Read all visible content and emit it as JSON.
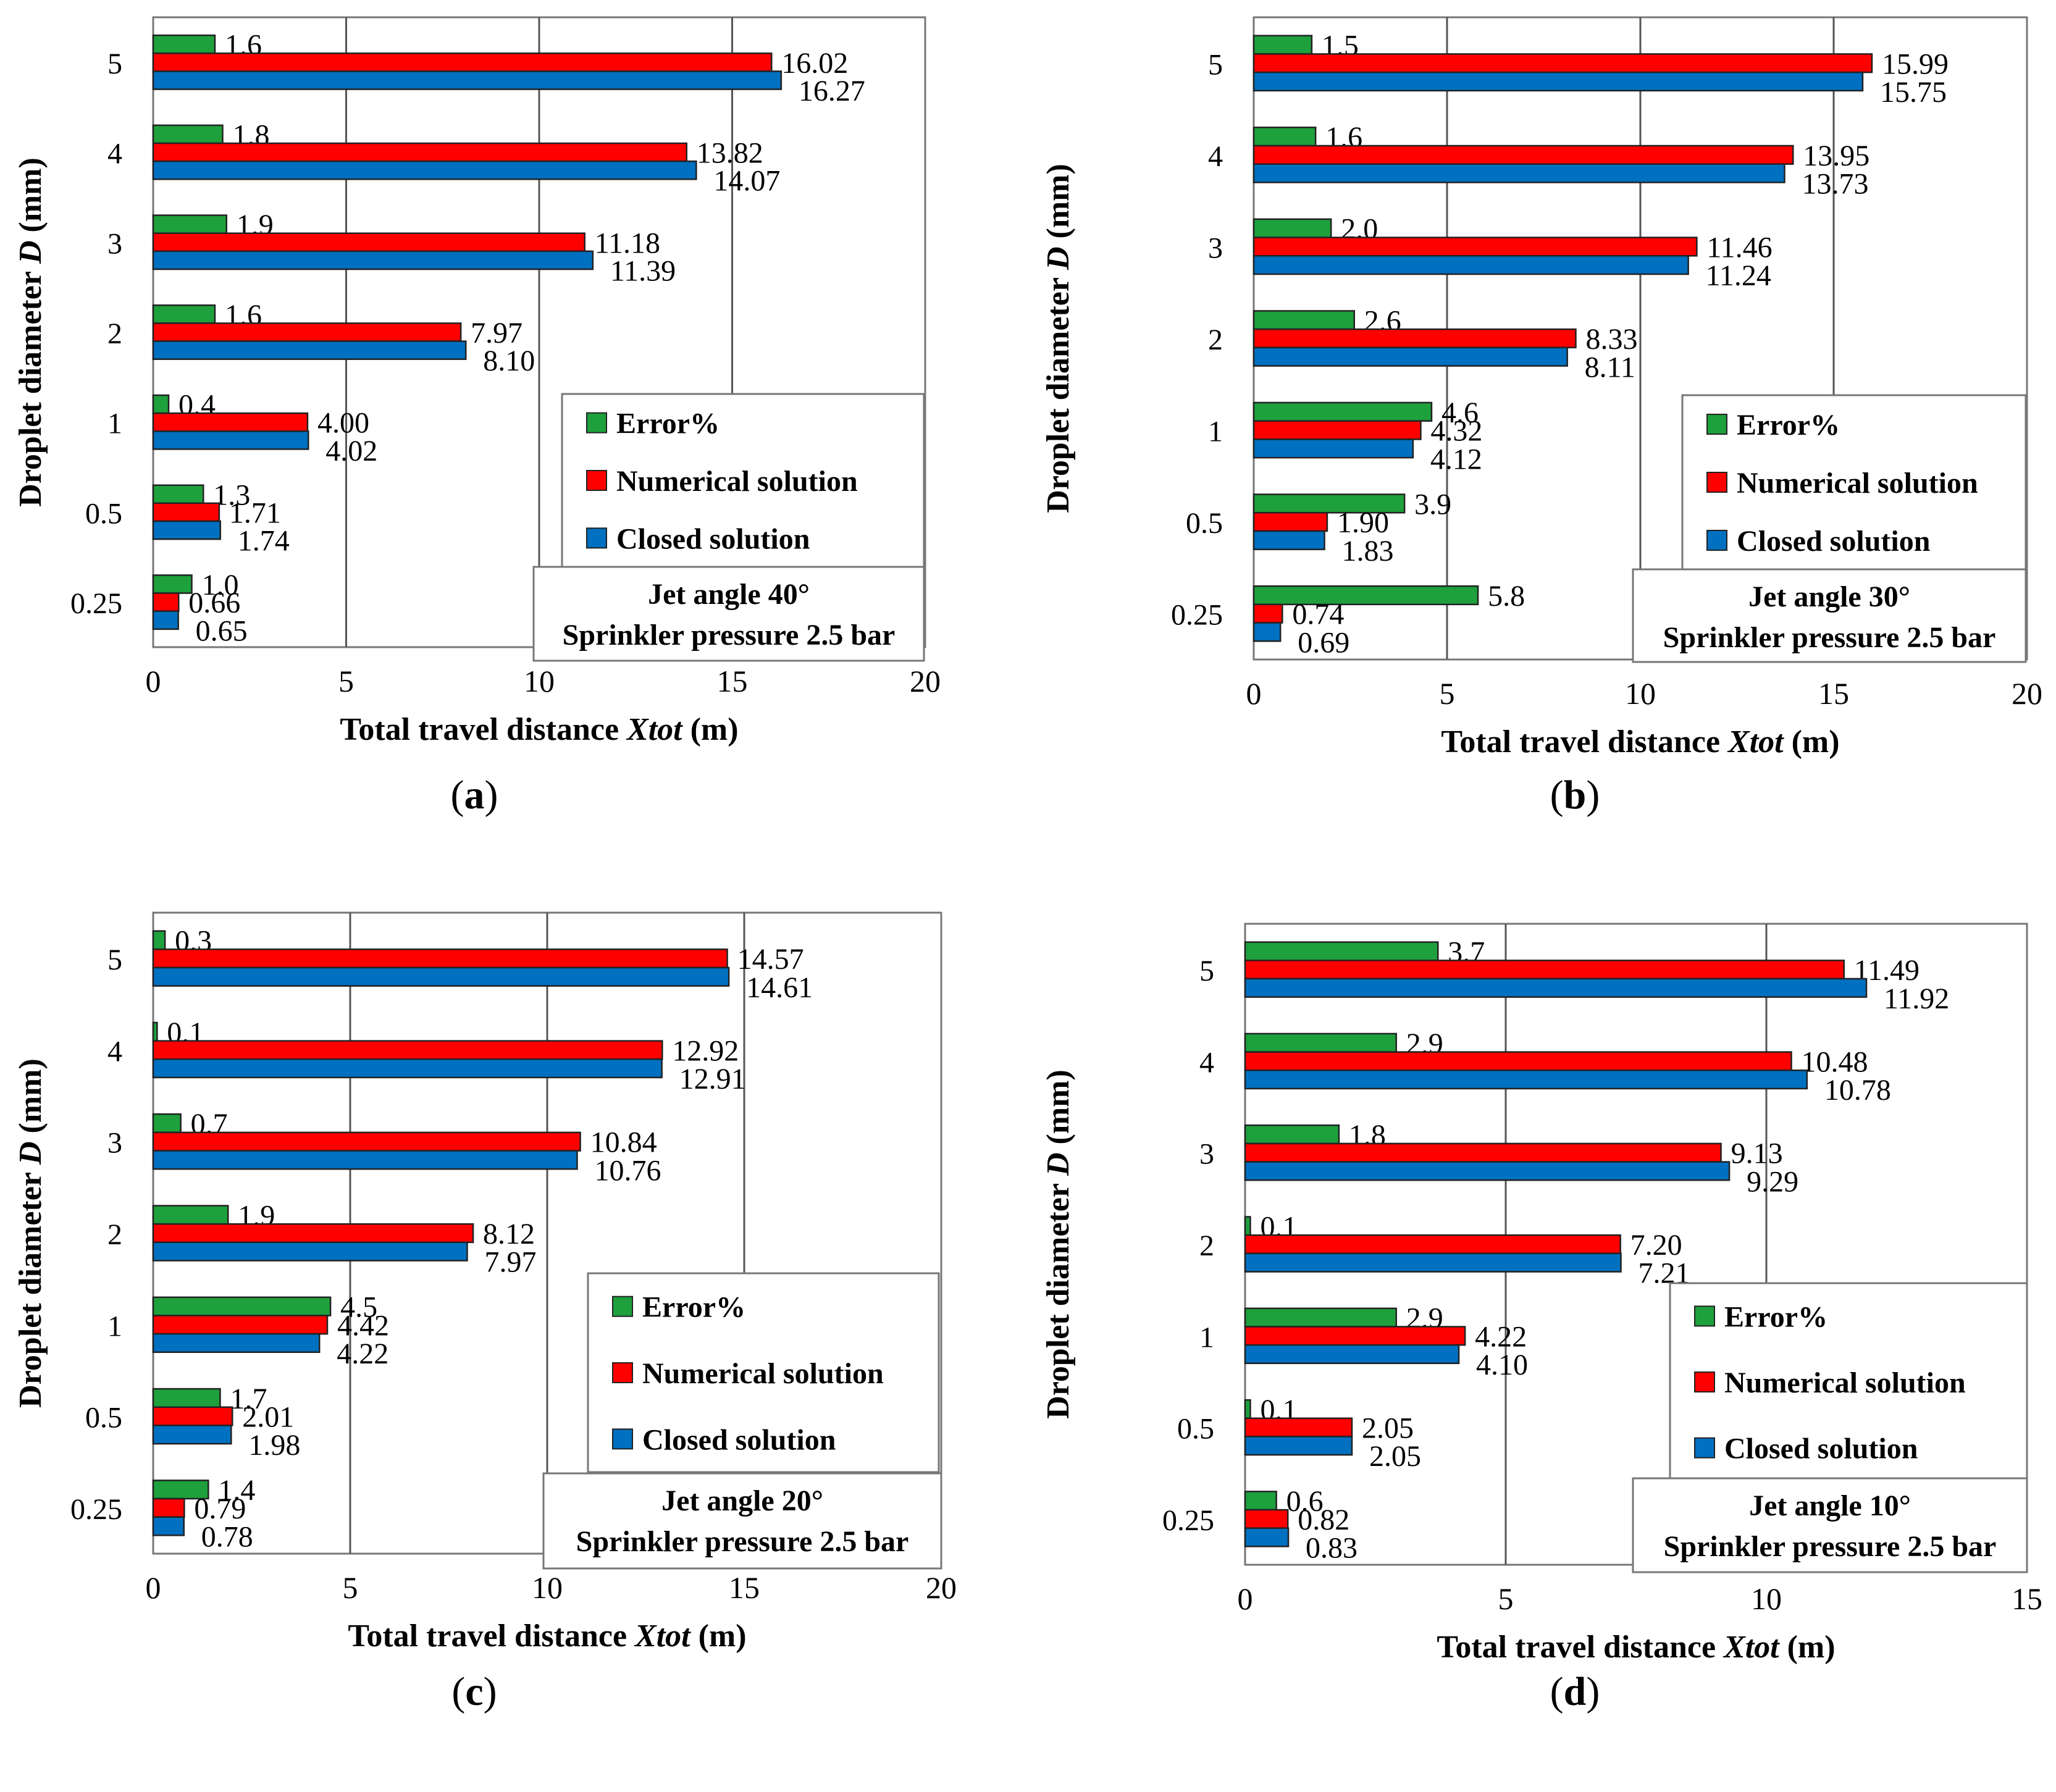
{
  "colors": {
    "error": "#1ea03c",
    "numerical": "#ff0000",
    "closed": "#0070c0"
  },
  "panels": [
    {
      "caption": "a",
      "legend": [
        "Error%",
        "Numerical solution",
        "Closed solution"
      ],
      "info": [
        "Jet angle 40°",
        "Sprinkler pressure 2.5 bar"
      ],
      "chart_data": {
        "type": "bar",
        "orientation": "horizontal",
        "categories": [
          "5",
          "4",
          "3",
          "2",
          "1",
          "0.5",
          "0.25"
        ],
        "series": [
          {
            "name": "Error%",
            "values": [
              1.6,
              1.8,
              1.9,
              1.6,
              0.4,
              1.3,
              1.0
            ],
            "labels": [
              "1.6",
              "1.8",
              "1.9",
              "1.6",
              "0.4",
              "1.3",
              "1.0"
            ]
          },
          {
            "name": "Numerical solution",
            "values": [
              16.02,
              13.82,
              11.18,
              7.97,
              4.0,
              1.71,
              0.66
            ],
            "labels": [
              "16.02",
              "13.82",
              "11.18",
              "7.97",
              "4.00",
              "1.71",
              "0.66"
            ]
          },
          {
            "name": "Closed solution",
            "values": [
              16.27,
              14.07,
              11.39,
              8.1,
              4.02,
              1.74,
              0.65
            ],
            "labels": [
              "16.27",
              "14.07",
              "11.39",
              "8.10",
              "4.02",
              "1.74",
              "0.65"
            ]
          }
        ],
        "xlim": [
          0,
          20
        ],
        "xticks": [
          "0",
          "5",
          "10",
          "15",
          "20"
        ],
        "xlabel": "Total travel distance Xtot (m)",
        "xlabel_pre": "Total travel distance ",
        "xlabel_var": "Xtot",
        "xlabel_post": " (m)",
        "ylabel": "Droplet diameter D (mm)",
        "ylabel_pre": "Droplet diameter ",
        "ylabel_var": "D",
        "ylabel_post": " (mm)"
      }
    },
    {
      "caption": "b",
      "legend": [
        "Error%",
        "Numerical solution",
        "Closed solution"
      ],
      "info": [
        "Jet angle 30°",
        "Sprinkler pressure 2.5 bar"
      ],
      "chart_data": {
        "type": "bar",
        "orientation": "horizontal",
        "categories": [
          "5",
          "4",
          "3",
          "2",
          "1",
          "0.5",
          "0.25"
        ],
        "series": [
          {
            "name": "Error%",
            "values": [
              1.5,
              1.6,
              2.0,
              2.6,
              4.6,
              3.9,
              5.8
            ],
            "labels": [
              "1.5",
              "1.6",
              "2.0",
              "2.6",
              "4.6",
              "3.9",
              "5.8"
            ]
          },
          {
            "name": "Numerical solution",
            "values": [
              15.99,
              13.95,
              11.46,
              8.33,
              4.32,
              1.9,
              0.74
            ],
            "labels": [
              "15.99",
              "13.95",
              "11.46",
              "8.33",
              "4.32",
              "1.90",
              "0.74"
            ]
          },
          {
            "name": "Closed solution",
            "values": [
              15.75,
              13.73,
              11.24,
              8.11,
              4.12,
              1.83,
              0.69
            ],
            "labels": [
              "15.75",
              "13.73",
              "11.24",
              "8.11",
              "4.12",
              "1.83",
              "0.69"
            ]
          }
        ],
        "xlim": [
          0,
          20
        ],
        "xticks": [
          "0",
          "5",
          "10",
          "15",
          "20"
        ],
        "xlabel": "Total travel distance Xtot (m)",
        "xlabel_pre": "Total travel distance ",
        "xlabel_var": "Xtot",
        "xlabel_post": " (m)",
        "ylabel": "Droplet diameter D (mm)",
        "ylabel_pre": "Droplet diameter ",
        "ylabel_var": "D",
        "ylabel_post": " (mm)"
      }
    },
    {
      "caption": "c",
      "legend": [
        "Error%",
        "Numerical solution",
        "Closed solution"
      ],
      "info": [
        "Jet angle 20°",
        "Sprinkler pressure 2.5 bar"
      ],
      "chart_data": {
        "type": "bar",
        "orientation": "horizontal",
        "categories": [
          "5",
          "4",
          "3",
          "2",
          "1",
          "0.5",
          "0.25"
        ],
        "series": [
          {
            "name": "Error%",
            "values": [
              0.3,
              0.1,
              0.7,
              1.9,
              4.5,
              1.7,
              1.4
            ],
            "labels": [
              "0.3",
              "0.1",
              "0.7",
              "1.9",
              "4.5",
              "1.7",
              "1.4"
            ]
          },
          {
            "name": "Numerical solution",
            "values": [
              14.57,
              12.92,
              10.84,
              8.12,
              4.42,
              2.01,
              0.79
            ],
            "labels": [
              "14.57",
              "12.92",
              "10.84",
              "8.12",
              "4.42",
              "2.01",
              "0.79"
            ]
          },
          {
            "name": "Closed solution",
            "values": [
              14.61,
              12.91,
              10.76,
              7.97,
              4.22,
              1.98,
              0.78
            ],
            "labels": [
              "14.61",
              "12.91",
              "10.76",
              "7.97",
              "4.22",
              "1.98",
              "0.78"
            ]
          }
        ],
        "xlim": [
          0,
          20
        ],
        "xticks": [
          "0",
          "5",
          "10",
          "15",
          "20"
        ],
        "xlabel": "Total travel distance Xtot (m)",
        "xlabel_pre": "Total travel distance ",
        "xlabel_var": "Xtot",
        "xlabel_post": " (m)",
        "ylabel": "Droplet diameter D (mm)",
        "ylabel_pre": "Droplet diameter ",
        "ylabel_var": "D",
        "ylabel_post": " (mm)"
      }
    },
    {
      "caption": "d",
      "legend": [
        "Error%",
        "Numerical solution",
        "Closed solution"
      ],
      "info": [
        "Jet angle 10°",
        "Sprinkler pressure 2.5 bar"
      ],
      "chart_data": {
        "type": "bar",
        "orientation": "horizontal",
        "categories": [
          "5",
          "4",
          "3",
          "2",
          "1",
          "0.5",
          "0.25"
        ],
        "series": [
          {
            "name": "Error%",
            "values": [
              3.7,
              2.9,
              1.8,
              0.1,
              2.9,
              0.1,
              0.6
            ],
            "labels": [
              "3.7",
              "2.9",
              "1.8",
              "0.1",
              "2.9",
              "0.1",
              "0.6"
            ]
          },
          {
            "name": "Numerical solution",
            "values": [
              11.49,
              10.48,
              9.13,
              7.2,
              4.22,
              2.05,
              0.82
            ],
            "labels": [
              "11.49",
              "10.48",
              "9.13",
              "7.20",
              "4.22",
              "2.05",
              "0.82"
            ]
          },
          {
            "name": "Closed solution",
            "values": [
              11.92,
              10.78,
              9.29,
              7.21,
              4.1,
              2.05,
              0.83
            ],
            "labels": [
              "11.92",
              "10.78",
              "9.29",
              "7.21",
              "4.10",
              "2.05",
              "0.83"
            ]
          }
        ],
        "xlim": [
          0,
          15
        ],
        "xticks": [
          "0",
          "5",
          "10",
          "15"
        ],
        "xlabel": "Total travel distance Xtot (m)",
        "xlabel_pre": "Total travel distance ",
        "xlabel_var": "Xtot",
        "xlabel_post": " (m)",
        "ylabel": "Droplet diameter D (mm)",
        "ylabel_pre": "Droplet diameter ",
        "ylabel_var": "D",
        "ylabel_post": " (mm)"
      }
    }
  ]
}
